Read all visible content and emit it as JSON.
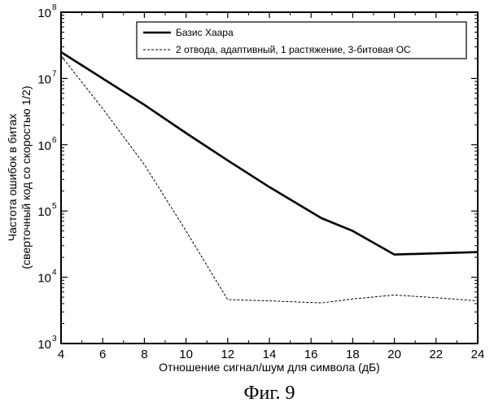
{
  "chart_data": {
    "type": "line",
    "yscale": "log",
    "xlabel": "Отношение сигнал/шум для символа (дБ)",
    "ylabel_line1": "Частота ошибок в битах",
    "ylabel_line2": "(сверточный код со скоростью 1/2)",
    "xlim": [
      4,
      24
    ],
    "ylim": [
      1000,
      100000000
    ],
    "x_ticks": [
      4,
      6,
      8,
      10,
      12,
      14,
      16,
      18,
      20,
      22,
      24
    ],
    "y_ticks": [
      {
        "base": "10",
        "exp": "3",
        "value": 1000
      },
      {
        "base": "10",
        "exp": "4",
        "value": 10000
      },
      {
        "base": "10",
        "exp": "5",
        "value": 100000
      },
      {
        "base": "10",
        "exp": "6",
        "value": 1000000
      },
      {
        "base": "10",
        "exp": "7",
        "value": 10000000
      },
      {
        "base": "10",
        "exp": "8",
        "value": 100000000
      }
    ],
    "legend_position": "top-right",
    "series": [
      {
        "name": "Базис Хаара",
        "style": "solid",
        "x": [
          4,
          6,
          8,
          10,
          12,
          14,
          16.5,
          18,
          20,
          22,
          24
        ],
        "y": [
          25000000,
          10000000,
          4000000,
          1500000,
          580000,
          230000,
          78000,
          50000,
          22000,
          23000,
          24000
        ]
      },
      {
        "name": "2 отвода, адаптивный, 1 растяжение, 3-битовая ОС",
        "style": "dashed",
        "x": [
          4,
          6,
          8,
          10,
          12,
          14,
          16.5,
          18,
          20,
          22,
          24
        ],
        "y": [
          22000000,
          3500000,
          500000,
          50000,
          4600,
          4400,
          4100,
          4700,
          5400,
          4900,
          4400
        ]
      }
    ]
  },
  "caption": "Фиг. 9"
}
